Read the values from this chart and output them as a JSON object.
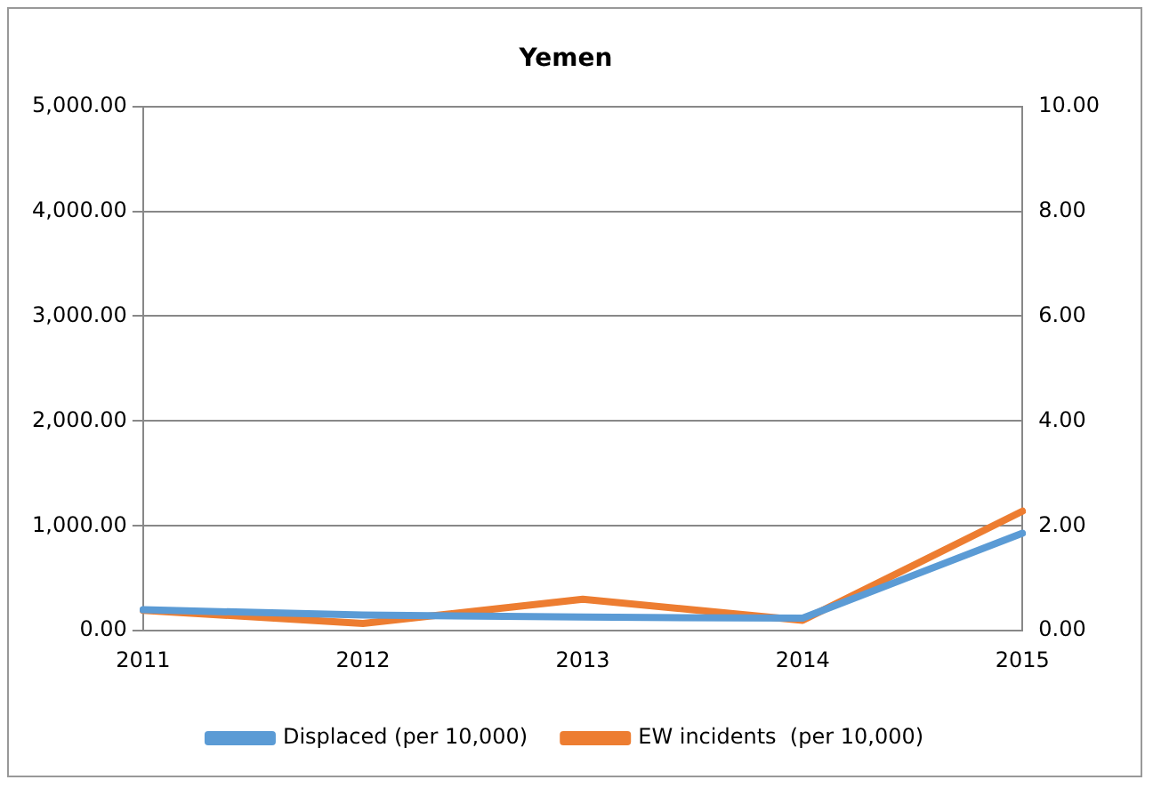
{
  "chart_data": {
    "type": "line",
    "title": "Yemen",
    "categories": [
      "2011",
      "2012",
      "2013",
      "2014",
      "2015"
    ],
    "series": [
      {
        "name": "Displaced (per 10,000)",
        "color": "#5b9bd5",
        "values": [
          200,
          150,
          130,
          120,
          930
        ]
      },
      {
        "name": "EW incidents  (per 10,000)",
        "color": "#ed7d31",
        "values": [
          0.39,
          0.14,
          0.6,
          0.2,
          2.28
        ],
        "axis": "y2"
      }
    ],
    "ylim": [
      0,
      5000
    ],
    "yticks": [
      {
        "value": 0,
        "label": "0.00"
      },
      {
        "value": 1000,
        "label": "1,000.00"
      },
      {
        "value": 2000,
        "label": "2,000.00"
      },
      {
        "value": 3000,
        "label": "3,000.00"
      },
      {
        "value": 4000,
        "label": "4,000.00"
      },
      {
        "value": 5000,
        "label": "5,000.00"
      }
    ],
    "y2lim": [
      0,
      10
    ],
    "y2ticks": [
      {
        "value": 0,
        "label": "0.00"
      },
      {
        "value": 2,
        "label": "2.00"
      },
      {
        "value": 4,
        "label": "4.00"
      },
      {
        "value": 6,
        "label": "6.00"
      },
      {
        "value": 8,
        "label": "8.00"
      },
      {
        "value": 10,
        "label": "10.00"
      }
    ],
    "grid": "y",
    "legend": "bottom",
    "marker": "none",
    "line_style": "solid"
  }
}
